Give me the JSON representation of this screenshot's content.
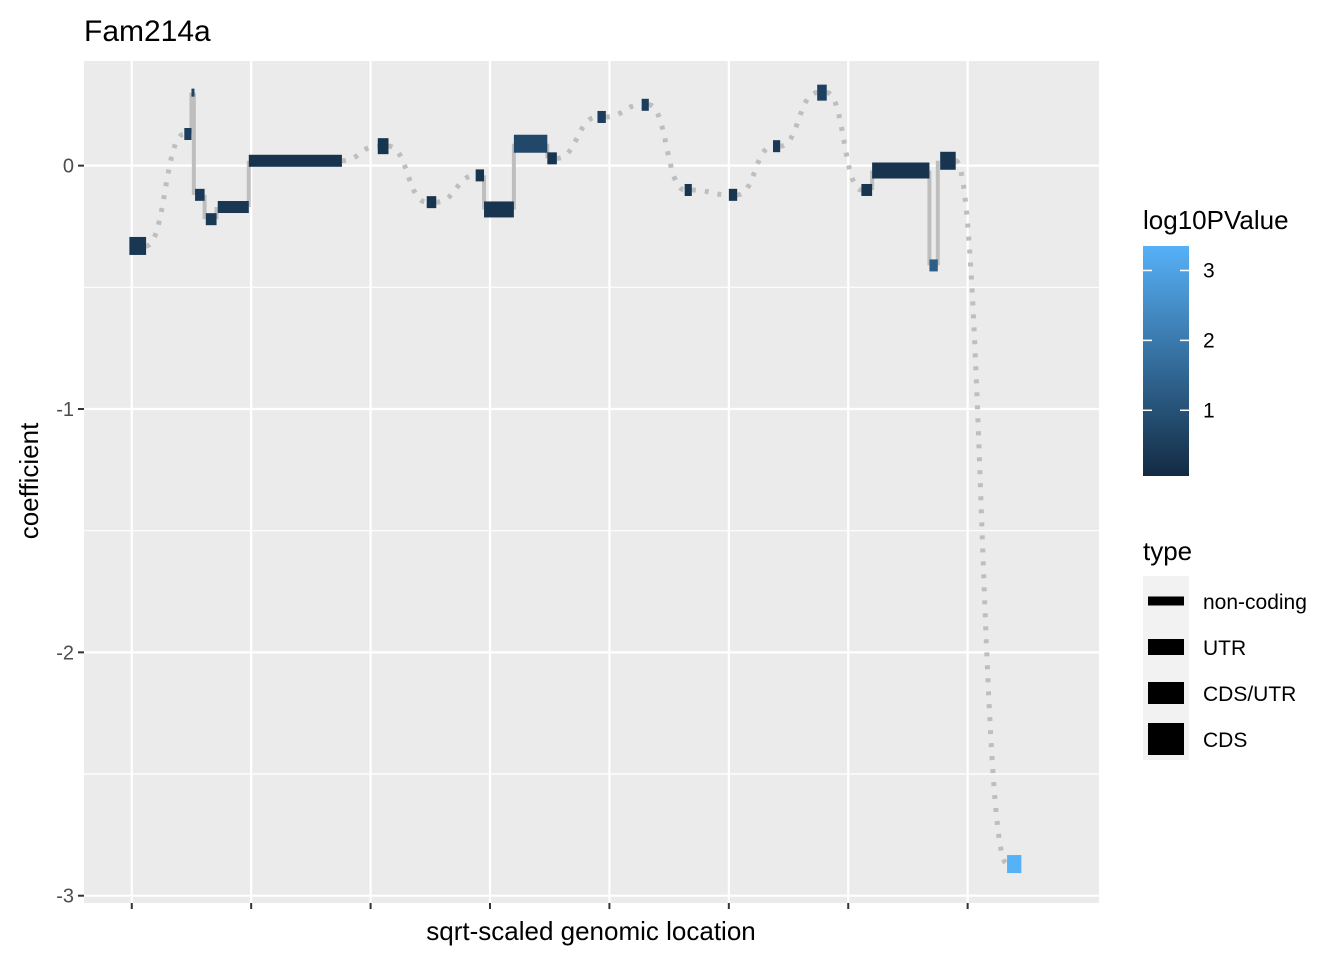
{
  "chart_data": {
    "type": "line",
    "title": "Fam214a",
    "xlabel": "sqrt-scaled genomic location",
    "ylabel": "coefficient",
    "x_tick_labels": false,
    "xlim": [
      -0.4,
      8.1
    ],
    "ylim": [
      -3.03,
      0.43
    ],
    "y_ticks": [
      0,
      -1,
      -2,
      -3
    ],
    "grid": true,
    "background": "#ebebeb",
    "connector_color": "#bebebe",
    "color_scale": {
      "title": "log10PValue",
      "min": 0.06,
      "max": 3.35,
      "ticks": [
        1,
        2,
        3
      ],
      "low_color": "#132b43",
      "high_color": "#56b1f7"
    },
    "type_legend": {
      "title": "type",
      "entries": [
        "non-coding",
        "UTR",
        "CDS/UTR",
        "CDS"
      ]
    },
    "segments": [
      {
        "x_start": -0.02,
        "x_end": 0.12,
        "coefficient": -0.33,
        "type": "CDS",
        "log10PValue": 0.35
      },
      {
        "x_start": 0.44,
        "x_end": 0.5,
        "coefficient": 0.13,
        "type": "UTR",
        "log10PValue": 0.5
      },
      {
        "x_start": 0.5,
        "x_end": 0.52,
        "coefficient": 0.3,
        "type": "non-coding",
        "log10PValue": 0.7
      },
      {
        "x_start": 0.53,
        "x_end": 0.61,
        "coefficient": -0.12,
        "type": "UTR",
        "log10PValue": 0.4
      },
      {
        "x_start": 0.62,
        "x_end": 0.71,
        "coefficient": -0.22,
        "type": "UTR",
        "log10PValue": 0.4
      },
      {
        "x_start": 0.72,
        "x_end": 0.98,
        "coefficient": -0.17,
        "type": "UTR",
        "log10PValue": 0.35
      },
      {
        "x_start": 0.98,
        "x_end": 1.76,
        "coefficient": 0.02,
        "type": "UTR",
        "log10PValue": 0.25
      },
      {
        "x_start": 2.06,
        "x_end": 2.15,
        "coefficient": 0.08,
        "type": "CDS/UTR",
        "log10PValue": 0.3
      },
      {
        "x_start": 2.47,
        "x_end": 2.55,
        "coefficient": -0.15,
        "type": "UTR",
        "log10PValue": 0.3
      },
      {
        "x_start": 2.88,
        "x_end": 2.95,
        "coefficient": -0.04,
        "type": "UTR",
        "log10PValue": 0.3
      },
      {
        "x_start": 2.95,
        "x_end": 3.2,
        "coefficient": -0.18,
        "type": "CDS/UTR",
        "log10PValue": 0.3
      },
      {
        "x_start": 3.2,
        "x_end": 3.48,
        "coefficient": 0.09,
        "type": "CDS",
        "log10PValue": 0.75
      },
      {
        "x_start": 3.48,
        "x_end": 3.56,
        "coefficient": 0.03,
        "type": "UTR",
        "log10PValue": 0.3
      },
      {
        "x_start": 3.9,
        "x_end": 3.97,
        "coefficient": 0.2,
        "type": "UTR",
        "log10PValue": 0.5
      },
      {
        "x_start": 4.27,
        "x_end": 4.33,
        "coefficient": 0.25,
        "type": "UTR",
        "log10PValue": 0.5
      },
      {
        "x_start": 4.63,
        "x_end": 4.69,
        "coefficient": -0.1,
        "type": "UTR",
        "log10PValue": 0.3
      },
      {
        "x_start": 5.0,
        "x_end": 5.07,
        "coefficient": -0.12,
        "type": "UTR",
        "log10PValue": 0.3
      },
      {
        "x_start": 5.37,
        "x_end": 5.43,
        "coefficient": 0.08,
        "type": "UTR",
        "log10PValue": 0.4
      },
      {
        "x_start": 5.74,
        "x_end": 5.82,
        "coefficient": 0.3,
        "type": "CDS/UTR",
        "log10PValue": 0.6
      },
      {
        "x_start": 6.11,
        "x_end": 6.2,
        "coefficient": -0.1,
        "type": "UTR",
        "log10PValue": 0.3
      },
      {
        "x_start": 6.2,
        "x_end": 6.68,
        "coefficient": -0.02,
        "type": "CDS/UTR",
        "log10PValue": 0.25
      },
      {
        "x_start": 6.68,
        "x_end": 6.75,
        "coefficient": -0.41,
        "type": "UTR",
        "log10PValue": 1.3
      },
      {
        "x_start": 6.77,
        "x_end": 6.9,
        "coefficient": 0.02,
        "type": "CDS",
        "log10PValue": 0.3
      },
      {
        "x_start": 7.33,
        "x_end": 7.45,
        "coefficient": -2.87,
        "type": "CDS",
        "log10PValue": 3.35
      }
    ]
  }
}
